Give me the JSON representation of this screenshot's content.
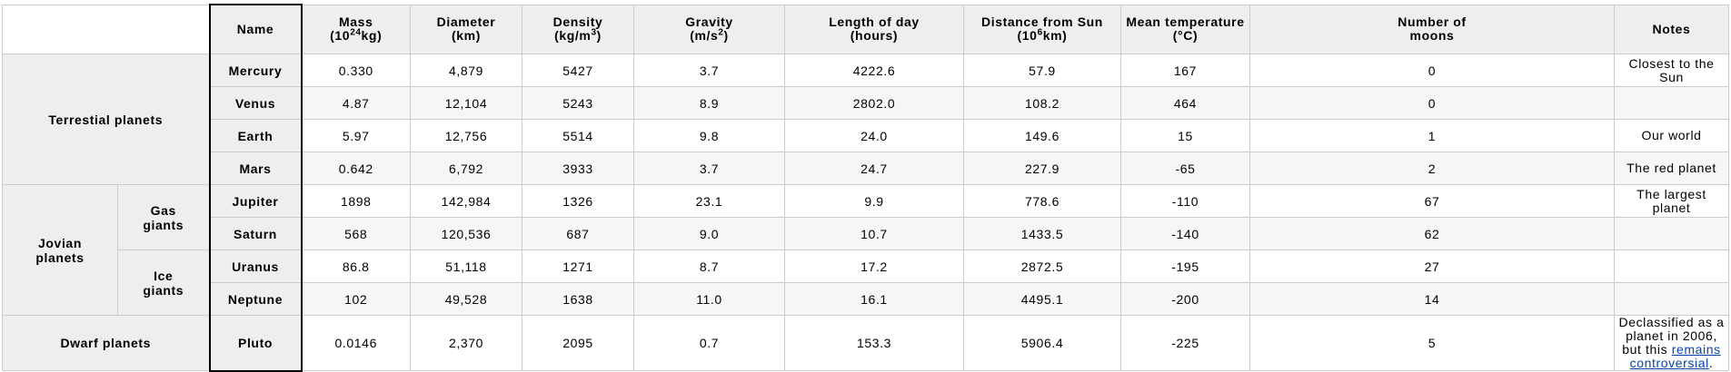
{
  "headers": {
    "name": "Name",
    "mass": {
      "line1": "Mass",
      "line2_pre": "(10",
      "line2_sup": "24",
      "line2_post": "kg)"
    },
    "diameter": {
      "line1": "Diameter",
      "line2": "(km)"
    },
    "density": {
      "line1": "Density",
      "line2_pre": "(kg/m",
      "line2_sup": "3",
      "line2_post": ")"
    },
    "gravity": {
      "line1": "Gravity",
      "line2_pre": "(m/s",
      "line2_sup": "2",
      "line2_post": ")"
    },
    "length_of_day": {
      "line1": "Length of day",
      "line2": "(hours)"
    },
    "distance": {
      "line1": "Distance from Sun",
      "line2_pre": "(10",
      "line2_sup": "6",
      "line2_post": "km)"
    },
    "temperature": {
      "line1": "Mean temperature",
      "line2": "(°C)"
    },
    "moons": {
      "line1": "Number of",
      "line2": "moons"
    },
    "notes": "Notes"
  },
  "groups": {
    "terrestrial": "Terrestial planets",
    "jovian": {
      "line1": "Jovian",
      "line2": "planets"
    },
    "gas_giants": {
      "line1": "Gas",
      "line2": "giants"
    },
    "ice_giants": {
      "line1": "Ice",
      "line2": "giants"
    },
    "dwarf": "Dwarf planets"
  },
  "planets": [
    {
      "name": "Mercury",
      "mass": "0.330",
      "diameter": "4,879",
      "density": "5427",
      "gravity": "3.7",
      "day": "4222.6",
      "distance": "57.9",
      "temp": "167",
      "moons": "0",
      "notes": "Closest to the Sun"
    },
    {
      "name": "Venus",
      "mass": "4.87",
      "diameter": "12,104",
      "density": "5243",
      "gravity": "8.9",
      "day": "2802.0",
      "distance": "108.2",
      "temp": "464",
      "moons": "0",
      "notes": ""
    },
    {
      "name": "Earth",
      "mass": "5.97",
      "diameter": "12,756",
      "density": "5514",
      "gravity": "9.8",
      "day": "24.0",
      "distance": "149.6",
      "temp": "15",
      "moons": "1",
      "notes": "Our world"
    },
    {
      "name": "Mars",
      "mass": "0.642",
      "diameter": "6,792",
      "density": "3933",
      "gravity": "3.7",
      "day": "24.7",
      "distance": "227.9",
      "temp": "-65",
      "moons": "2",
      "notes": "The red planet"
    },
    {
      "name": "Jupiter",
      "mass": "1898",
      "diameter": "142,984",
      "density": "1326",
      "gravity": "23.1",
      "day": "9.9",
      "distance": "778.6",
      "temp": "-110",
      "moons": "67",
      "notes": "The largest planet"
    },
    {
      "name": "Saturn",
      "mass": "568",
      "diameter": "120,536",
      "density": "687",
      "gravity": "9.0",
      "day": "10.7",
      "distance": "1433.5",
      "temp": "-140",
      "moons": "62",
      "notes": ""
    },
    {
      "name": "Uranus",
      "mass": "86.8",
      "diameter": "51,118",
      "density": "1271",
      "gravity": "8.7",
      "day": "17.2",
      "distance": "2872.5",
      "temp": "-195",
      "moons": "27",
      "notes": ""
    },
    {
      "name": "Neptune",
      "mass": "102",
      "diameter": "49,528",
      "density": "1638",
      "gravity": "11.0",
      "day": "16.1",
      "distance": "4495.1",
      "temp": "-200",
      "moons": "14",
      "notes": ""
    },
    {
      "name": "Pluto",
      "mass": "0.0146",
      "diameter": "2,370",
      "density": "2095",
      "gravity": "0.7",
      "day": "153.3",
      "distance": "5906.4",
      "temp": "-225",
      "moons": "5",
      "notes": {
        "text_before": "Declassified as a planet in 2006, but this ",
        "link_text": "remains controversial",
        "text_after": "."
      }
    }
  ]
}
